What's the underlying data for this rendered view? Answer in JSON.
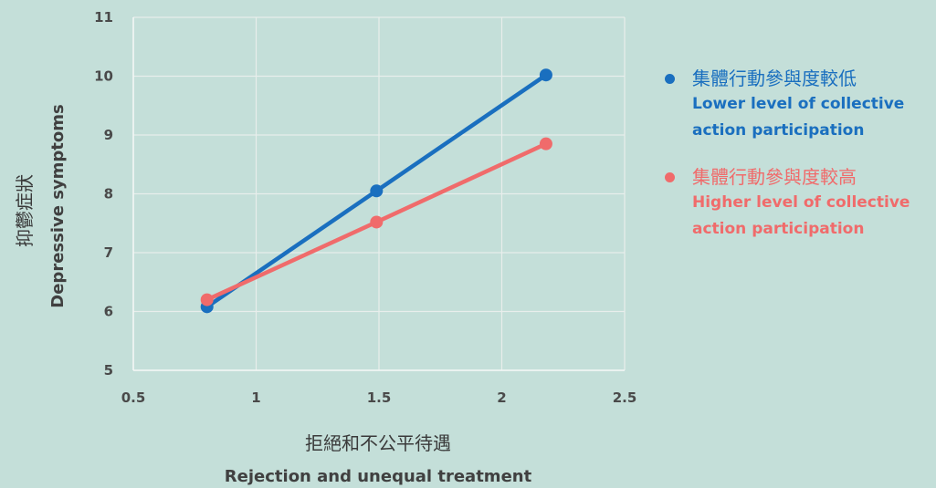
{
  "chart_data": {
    "type": "line",
    "x_ticks": [
      "0.5",
      "1",
      "1.5",
      "2",
      "2.5"
    ],
    "y_ticks": [
      "5",
      "6",
      "7",
      "8",
      "9",
      "10",
      "11"
    ],
    "xlim": [
      0.5,
      2.5
    ],
    "ylim": [
      5,
      11
    ],
    "grid": true,
    "legend_position": "right",
    "xlabel_zh": "拒絕和不公平待遇",
    "xlabel_en": "Rejection and unequal treatment",
    "ylabel_zh": "抑鬱症狀",
    "ylabel_en": "Depressive symptoms",
    "series": [
      {
        "name": "集體行動參與度較低",
        "name_en": "Lower level of collective action participation",
        "color": "#1a6fbf",
        "x": [
          0.8,
          1.49,
          2.18
        ],
        "y": [
          6.08,
          8.05,
          10.02
        ]
      },
      {
        "name": "集體行動參與度較高",
        "name_en": "Higher level of collective action participation",
        "color": "#f06b6b",
        "x": [
          0.8,
          1.49,
          2.18
        ],
        "y": [
          6.2,
          7.52,
          8.85
        ]
      }
    ]
  }
}
